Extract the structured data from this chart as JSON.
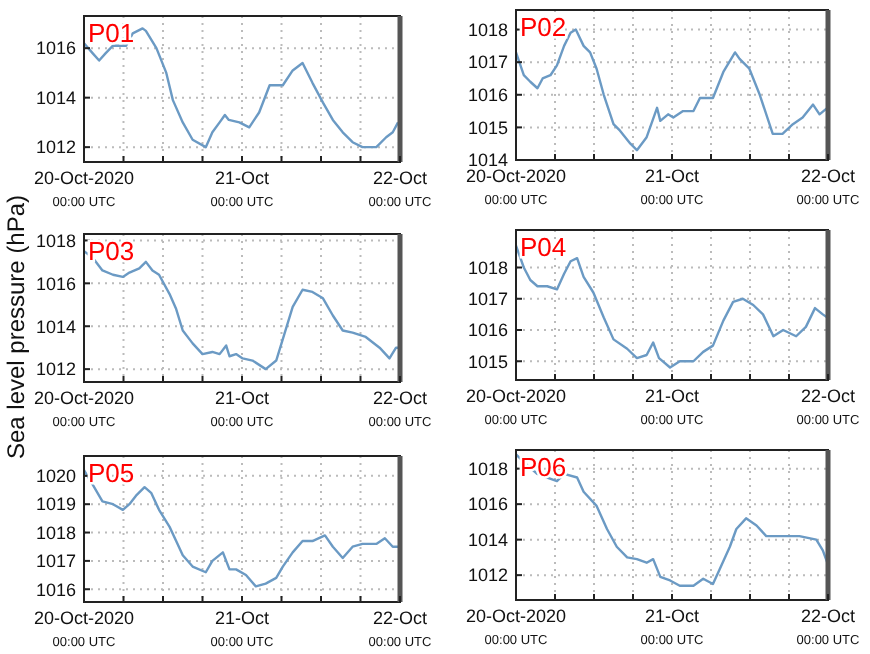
{
  "chart_data": [
    {
      "type": "line",
      "title": "P01",
      "xlim": [
        "2020-10-20T00:00",
        "2020-10-22T00:00"
      ],
      "ylim": [
        1011.4,
        1017.3
      ],
      "yticks": [
        1012,
        1014,
        1016
      ],
      "grid": true,
      "xticks": [
        {
          "value": "2020-10-20T00:00",
          "label": "20-Oct-2020\n00:00 UTC"
        },
        {
          "value": "2020-10-20T06:00",
          "label": null
        },
        {
          "value": "2020-10-20T12:00",
          "label": null
        },
        {
          "value": "2020-10-20T18:00",
          "label": null
        },
        {
          "value": "2020-10-21T00:00",
          "label": "21-Oct\n00:00 UTC"
        },
        {
          "value": "2020-10-21T06:00",
          "label": null
        },
        {
          "value": "2020-10-21T12:00",
          "label": null
        },
        {
          "value": "2020-10-21T18:00",
          "label": null
        },
        {
          "value": "2020-10-22T00:00",
          "label": "22-Oct\n00:00 UTC"
        }
      ],
      "series": [
        {
          "color": "#6b9ac4",
          "x": [
            "2020-10-20T00:00",
            "2020-10-20T01:18",
            "2020-10-20T02:18",
            "2020-10-20T03:18",
            "2020-10-20T04:24",
            "2020-10-20T06:24",
            "2020-10-20T07:24",
            "2020-10-20T08:54",
            "2020-10-20T09:24",
            "2020-10-20T11:00",
            "2020-10-20T12:30",
            "2020-10-20T13:30",
            "2020-10-20T15:00",
            "2020-10-20T16:30",
            "2020-10-20T18:30",
            "2020-10-20T19:30",
            "2020-10-20T20:36",
            "2020-10-20T21:24",
            "2020-10-20T22:00",
            "2020-10-20T23:36",
            "2020-10-21T01:06",
            "2020-10-21T02:36",
            "2020-10-21T04:12",
            "2020-10-21T06:12",
            "2020-10-21T07:42",
            "2020-10-21T09:12",
            "2020-10-21T10:42",
            "2020-10-21T12:18",
            "2020-10-21T13:48",
            "2020-10-21T15:18",
            "2020-10-21T16:48",
            "2020-10-21T18:18",
            "2020-10-21T20:24",
            "2020-10-21T21:54",
            "2020-10-21T22:54",
            "2020-10-21T23:42"
          ],
          "values": [
            1016.2,
            1015.8,
            1015.5,
            1015.8,
            1016.1,
            1016.1,
            1016.6,
            1016.8,
            1016.7,
            1016,
            1015,
            1013.9,
            1013,
            1012.3,
            1012,
            1012.6,
            1013,
            1013.3,
            1013.1,
            1013,
            1012.8,
            1013.4,
            1014.5,
            1014.5,
            1015.1,
            1015.4,
            1014.6,
            1013.8,
            1013.1,
            1012.6,
            1012.2,
            1012,
            1012,
            1012.4,
            1012.6,
            1013
          ]
        }
      ]
    },
    {
      "type": "line",
      "title": "P02",
      "xlim": [
        "2020-10-20T00:00",
        "2020-10-22T00:00"
      ],
      "ylim": [
        1014,
        1018.6
      ],
      "yticks": [
        1014,
        1015,
        1016,
        1017,
        1018
      ],
      "grid": true,
      "xticks": [
        {
          "value": "2020-10-20T00:00",
          "label": "20-Oct-2020\n00:00 UTC"
        },
        {
          "value": "2020-10-20T06:00",
          "label": null
        },
        {
          "value": "2020-10-20T12:00",
          "label": null
        },
        {
          "value": "2020-10-20T18:00",
          "label": null
        },
        {
          "value": "2020-10-21T00:00",
          "label": "21-Oct\n00:00 UTC"
        },
        {
          "value": "2020-10-21T06:00",
          "label": null
        },
        {
          "value": "2020-10-21T12:00",
          "label": null
        },
        {
          "value": "2020-10-21T18:00",
          "label": null
        },
        {
          "value": "2020-10-22T00:00",
          "label": "22-Oct\n00:00 UTC"
        }
      ],
      "series": [
        {
          "color": "#6b9ac4",
          "x": [
            "2020-10-20T00:00",
            "2020-10-20T01:12",
            "2020-10-20T02:12",
            "2020-10-20T03:18",
            "2020-10-20T04:06",
            "2020-10-20T05:18",
            "2020-10-20T06:18",
            "2020-10-20T07:24",
            "2020-10-20T08:24",
            "2020-10-20T09:12",
            "2020-10-20T10:24",
            "2020-10-20T11:24",
            "2020-10-20T12:24",
            "2020-10-20T13:30",
            "2020-10-20T15:00",
            "2020-10-20T16:00",
            "2020-10-20T17:36",
            "2020-10-20T18:36",
            "2020-10-20T20:06",
            "2020-10-20T21:42",
            "2020-10-20T22:12",
            "2020-10-20T23:24",
            "2020-10-21T00:12",
            "2020-10-21T01:42",
            "2020-10-21T03:18",
            "2020-10-21T04:18",
            "2020-10-21T06:18",
            "2020-10-21T07:54",
            "2020-10-21T09:42",
            "2020-10-21T10:24",
            "2020-10-21T11:54",
            "2020-10-21T13:30",
            "2020-10-21T15:30",
            "2020-10-21T17:00",
            "2020-10-21T18:36",
            "2020-10-21T20:06",
            "2020-10-21T21:42",
            "2020-10-21T22:42",
            "2020-10-21T23:54"
          ],
          "values": [
            1017.3,
            1016.6,
            1016.4,
            1016.2,
            1016.5,
            1016.6,
            1016.9,
            1017.5,
            1017.9,
            1018,
            1017.5,
            1017.3,
            1016.8,
            1016,
            1015.1,
            1014.9,
            1014.5,
            1014.3,
            1014.7,
            1015.6,
            1015.2,
            1015.4,
            1015.3,
            1015.5,
            1015.5,
            1015.9,
            1015.9,
            1016.7,
            1017.3,
            1017.1,
            1016.8,
            1016,
            1014.8,
            1014.8,
            1015.1,
            1015.3,
            1015.7,
            1015.4,
            1015.6
          ]
        }
      ]
    },
    {
      "type": "line",
      "title": "P03",
      "ylabel": "Sea level pressure (hPa)",
      "xlim": [
        "2020-10-20T00:00",
        "2020-10-22T00:00"
      ],
      "ylim": [
        1011.4,
        1018.3
      ],
      "yticks": [
        1012,
        1014,
        1016,
        1018
      ],
      "grid": true,
      "xticks": [
        {
          "value": "2020-10-20T00:00",
          "label": "20-Oct-2020\n00:00 UTC"
        },
        {
          "value": "2020-10-20T06:00",
          "label": null
        },
        {
          "value": "2020-10-20T12:00",
          "label": null
        },
        {
          "value": "2020-10-20T18:00",
          "label": null
        },
        {
          "value": "2020-10-21T00:00",
          "label": "21-Oct\n00:00 UTC"
        },
        {
          "value": "2020-10-21T06:00",
          "label": null
        },
        {
          "value": "2020-10-21T12:00",
          "label": null
        },
        {
          "value": "2020-10-21T18:00",
          "label": null
        },
        {
          "value": "2020-10-22T00:00",
          "label": "22-Oct\n00:00 UTC"
        }
      ],
      "series": [
        {
          "color": "#6b9ac4",
          "x": [
            "2020-10-20T00:00",
            "2020-10-20T01:18",
            "2020-10-20T02:48",
            "2020-10-20T04:24",
            "2020-10-20T05:54",
            "2020-10-20T06:54",
            "2020-10-20T08:24",
            "2020-10-20T09:24",
            "2020-10-20T10:24",
            "2020-10-20T11:24",
            "2020-10-20T13:00",
            "2020-10-20T14:00",
            "2020-10-20T15:00",
            "2020-10-20T16:30",
            "2020-10-20T18:00",
            "2020-10-20T19:30",
            "2020-10-20T20:36",
            "2020-10-20T21:36",
            "2020-10-20T22:06",
            "2020-10-20T23:06",
            "2020-10-21T00:06",
            "2020-10-21T01:36",
            "2020-10-21T03:36",
            "2020-10-21T05:12",
            "2020-10-21T06:12",
            "2020-10-21T07:42",
            "2020-10-21T09:12",
            "2020-10-21T10:42",
            "2020-10-21T12:18",
            "2020-10-21T13:48",
            "2020-10-21T15:18",
            "2020-10-21T16:48",
            "2020-10-21T18:48",
            "2020-10-21T20:54",
            "2020-10-21T22:24",
            "2020-10-21T23:24",
            "2020-10-22T00:00"
          ],
          "values": [
            1017.5,
            1017.2,
            1016.6,
            1016.4,
            1016.3,
            1016.5,
            1016.7,
            1017,
            1016.6,
            1016.4,
            1015.5,
            1014.8,
            1013.8,
            1013.2,
            1012.7,
            1012.8,
            1012.7,
            1013.1,
            1012.6,
            1012.7,
            1012.5,
            1012.4,
            1012,
            1012.4,
            1013.4,
            1014.9,
            1015.7,
            1015.6,
            1015.3,
            1014.5,
            1013.8,
            1013.7,
            1013.5,
            1013,
            1012.5,
            1013,
            1013
          ]
        }
      ]
    },
    {
      "type": "line",
      "title": "P04",
      "xlim": [
        "2020-10-20T00:00",
        "2020-10-22T00:00"
      ],
      "ylim": [
        1014.4,
        1019.2
      ],
      "yticks": [
        1015,
        1016,
        1017,
        1018
      ],
      "grid": true,
      "xticks": [
        {
          "value": "2020-10-20T00:00",
          "label": "20-Oct-2020\n00:00 UTC"
        },
        {
          "value": "2020-10-20T06:00",
          "label": null
        },
        {
          "value": "2020-10-20T12:00",
          "label": null
        },
        {
          "value": "2020-10-20T18:00",
          "label": null
        },
        {
          "value": "2020-10-21T00:00",
          "label": "21-Oct\n00:00 UTC"
        },
        {
          "value": "2020-10-21T06:00",
          "label": null
        },
        {
          "value": "2020-10-21T12:00",
          "label": null
        },
        {
          "value": "2020-10-21T18:00",
          "label": null
        },
        {
          "value": "2020-10-22T00:00",
          "label": "22-Oct\n00:00 UTC"
        }
      ],
      "series": [
        {
          "color": "#6b9ac4",
          "x": [
            "2020-10-20T00:00",
            "2020-10-20T01:12",
            "2020-10-20T02:12",
            "2020-10-20T03:18",
            "2020-10-20T04:48",
            "2020-10-20T06:18",
            "2020-10-20T07:24",
            "2020-10-20T08:24",
            "2020-10-20T09:24",
            "2020-10-20T10:24",
            "2020-10-20T11:54",
            "2020-10-20T13:30",
            "2020-10-20T15:00",
            "2020-10-20T17:06",
            "2020-10-20T18:36",
            "2020-10-20T20:06",
            "2020-10-20T21:06",
            "2020-10-20T22:00",
            "2020-10-20T23:42",
            "2020-10-21T01:12",
            "2020-10-21T03:18",
            "2020-10-21T04:48",
            "2020-10-21T06:18",
            "2020-10-21T07:54",
            "2020-10-21T09:24",
            "2020-10-21T10:54",
            "2020-10-21T12:30",
            "2020-10-21T14:00",
            "2020-10-21T15:36",
            "2020-10-21T17:06",
            "2020-10-21T19:06",
            "2020-10-21T20:36",
            "2020-10-21T22:00",
            "2020-10-21T23:12",
            "2020-10-21T23:54"
          ],
          "values": [
            1018.7,
            1018,
            1017.6,
            1017.4,
            1017.4,
            1017.3,
            1017.8,
            1018.2,
            1018.3,
            1017.7,
            1017.2,
            1016.4,
            1015.7,
            1015.4,
            1015.1,
            1015.2,
            1015.6,
            1015.1,
            1014.8,
            1015,
            1015,
            1015.3,
            1015.5,
            1016.3,
            1016.9,
            1017,
            1016.8,
            1016.5,
            1015.8,
            1016,
            1015.8,
            1016.1,
            1016.7,
            1016.5,
            1016.4
          ]
        }
      ]
    },
    {
      "type": "line",
      "title": "P05",
      "xlim": [
        "2020-10-20T00:00",
        "2020-10-22T00:00"
      ],
      "ylim": [
        1015.55,
        1020.7
      ],
      "yticks": [
        1016,
        1017,
        1018,
        1019,
        1020
      ],
      "grid": true,
      "xticks": [
        {
          "value": "2020-10-20T00:00",
          "label": "20-Oct-2020\n00:00 UTC"
        },
        {
          "value": "2020-10-20T06:00",
          "label": null
        },
        {
          "value": "2020-10-20T12:00",
          "label": null
        },
        {
          "value": "2020-10-20T18:00",
          "label": null
        },
        {
          "value": "2020-10-21T00:00",
          "label": "21-Oct\n00:00 UTC"
        },
        {
          "value": "2020-10-21T06:00",
          "label": null
        },
        {
          "value": "2020-10-21T12:00",
          "label": null
        },
        {
          "value": "2020-10-21T18:00",
          "label": null
        },
        {
          "value": "2020-10-22T00:00",
          "label": "22-Oct\n00:00 UTC"
        }
      ],
      "series": [
        {
          "color": "#6b9ac4",
          "x": [
            "2020-10-20T00:00",
            "2020-10-20T01:18",
            "2020-10-20T02:48",
            "2020-10-20T04:24",
            "2020-10-20T05:54",
            "2020-10-20T06:54",
            "2020-10-20T07:54",
            "2020-10-20T09:12",
            "2020-10-20T10:12",
            "2020-10-20T11:24",
            "2020-10-20T13:00",
            "2020-10-20T14:00",
            "2020-10-20T15:00",
            "2020-10-20T16:30",
            "2020-10-20T18:30",
            "2020-10-20T19:30",
            "2020-10-20T21:06",
            "2020-10-20T22:06",
            "2020-10-20T23:06",
            "2020-10-21T00:36",
            "2020-10-21T02:06",
            "2020-10-21T03:36",
            "2020-10-21T05:12",
            "2020-10-21T06:12",
            "2020-10-21T07:42",
            "2020-10-21T09:12",
            "2020-10-21T10:42",
            "2020-10-21T12:36",
            "2020-10-21T13:48",
            "2020-10-21T15:18",
            "2020-10-21T16:48",
            "2020-10-21T18:18",
            "2020-10-21T20:24",
            "2020-10-21T21:42",
            "2020-10-21T22:54",
            "2020-10-21T23:54"
          ],
          "values": [
            1020.2,
            1019.7,
            1019.1,
            1019,
            1018.8,
            1019,
            1019.3,
            1019.6,
            1019.4,
            1018.8,
            1018.2,
            1017.7,
            1017.2,
            1016.8,
            1016.6,
            1017,
            1017.3,
            1016.7,
            1016.7,
            1016.5,
            1016.1,
            1016.2,
            1016.4,
            1016.8,
            1017.3,
            1017.7,
            1017.7,
            1017.9,
            1017.5,
            1017.1,
            1017.5,
            1017.6,
            1017.6,
            1017.8,
            1017.5,
            1017.5
          ]
        }
      ]
    },
    {
      "type": "line",
      "title": "P06",
      "xlim": [
        "2020-10-20T00:00",
        "2020-10-22T00:00"
      ],
      "ylim": [
        1010.6,
        1019.05
      ],
      "yticks": [
        1012,
        1014,
        1016,
        1018
      ],
      "grid": true,
      "xticks": [
        {
          "value": "2020-10-20T00:00",
          "label": "20-Oct-2020\n00:00 UTC"
        },
        {
          "value": "2020-10-20T06:00",
          "label": null
        },
        {
          "value": "2020-10-20T12:00",
          "label": null
        },
        {
          "value": "2020-10-20T18:00",
          "label": null
        },
        {
          "value": "2020-10-21T00:00",
          "label": "21-Oct\n00:00 UTC"
        },
        {
          "value": "2020-10-21T06:00",
          "label": null
        },
        {
          "value": "2020-10-21T12:00",
          "label": null
        },
        {
          "value": "2020-10-21T18:00",
          "label": null
        },
        {
          "value": "2020-10-22T00:00",
          "label": "22-Oct\n00:00 UTC"
        }
      ],
      "series": [
        {
          "color": "#6b9ac4",
          "x": [
            "2020-10-20T00:00",
            "2020-10-20T01:42",
            "2020-10-20T03:18",
            "2020-10-20T04:48",
            "2020-10-20T06:18",
            "2020-10-20T07:24",
            "2020-10-20T09:24",
            "2020-10-20T10:24",
            "2020-10-20T12:24",
            "2020-10-20T14:00",
            "2020-10-20T15:30",
            "2020-10-20T17:06",
            "2020-10-20T18:36",
            "2020-10-20T20:06",
            "2020-10-20T21:06",
            "2020-10-20T22:12",
            "2020-10-20T23:42",
            "2020-10-21T01:12",
            "2020-10-21T03:18",
            "2020-10-21T04:48",
            "2020-10-21T06:18",
            "2020-10-21T07:18",
            "2020-10-21T08:54",
            "2020-10-21T09:54",
            "2020-10-21T11:24",
            "2020-10-21T13:00",
            "2020-10-21T14:30",
            "2020-10-21T16:30",
            "2020-10-21T19:36",
            "2020-10-21T22:12",
            "2020-10-21T23:12",
            "2020-10-21T23:54"
          ],
          "values": [
            1018.8,
            1018.2,
            1017.7,
            1017.5,
            1017.3,
            1017.7,
            1017.5,
            1016.7,
            1015.9,
            1014.6,
            1013.6,
            1013,
            1012.9,
            1012.7,
            1012.9,
            1011.9,
            1011.7,
            1011.4,
            1011.4,
            1011.8,
            1011.5,
            1012.3,
            1013.6,
            1014.6,
            1015.2,
            1014.8,
            1014.2,
            1014.2,
            1014.2,
            1014,
            1013.4,
            1012.7
          ]
        }
      ]
    }
  ]
}
